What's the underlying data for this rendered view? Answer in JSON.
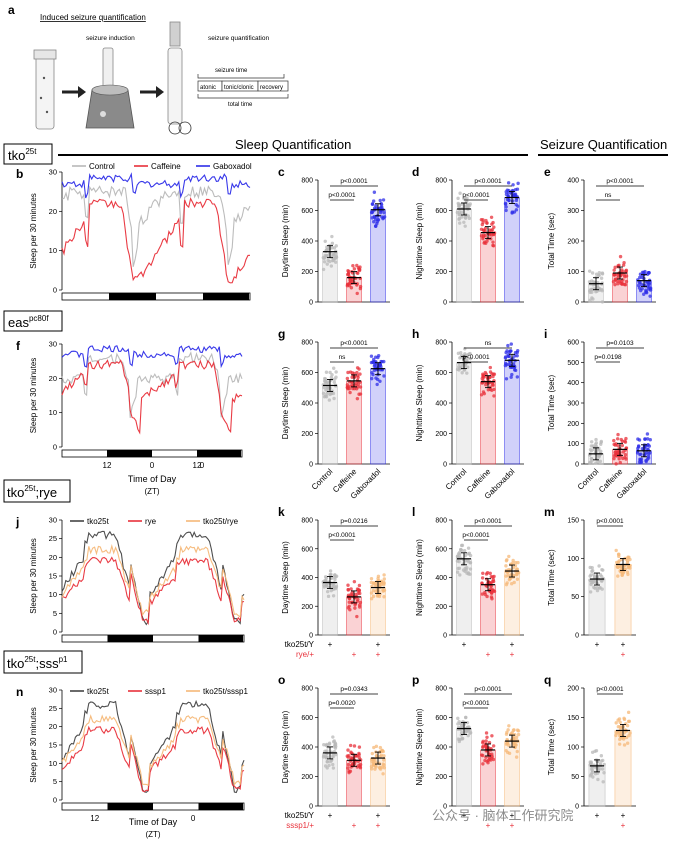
{
  "schematic": {
    "panel": "a",
    "title": "Induced seizure quantification",
    "label_induction": "seizure induction",
    "label_quant": "seizure quantification",
    "seizure_time": "seizure time",
    "phases": [
      "atonic",
      "tonic/clonic",
      "recovery"
    ],
    "total_time": "total time"
  },
  "headers": {
    "sleep": "Sleep Quantification",
    "seizure": "Seizure Quantification"
  },
  "genotypes": {
    "tko": {
      "base": "tko",
      "sup": "25t"
    },
    "eas": {
      "base": "eas",
      "sup": "pc80f"
    },
    "rye": {
      "base": "tko",
      "sup": "25t",
      "tail": ";rye"
    },
    "sss": {
      "base": "tko",
      "sup": "25t",
      "tail": ";sss",
      "sup2": "p1"
    }
  },
  "colors": {
    "control": "#b8b8b8",
    "caffeine": "#e8303a",
    "gaboxadol": "#2d2de8",
    "tko": "#444444",
    "rye": "#e8303a",
    "sss": "#e8303a",
    "double": "#f5b878"
  },
  "ylabels": {
    "sleep30": "Sleep per 30 minutes",
    "day": "Daytime Sleep (min)",
    "night": "Nighttime Sleep (min)",
    "total": "Total Time (sec)"
  },
  "xaxis": {
    "title": "Time of Day",
    "unit": "(ZT)"
  },
  "legend_bd": [
    "Control",
    "Caffeine",
    "Gaboxadol"
  ],
  "legend_j": [
    "tko25t",
    "rye",
    "tko25t/rye"
  ],
  "legend_n": [
    "tko25t",
    "sssp1",
    "tko25t/sssp1"
  ],
  "conditions": [
    "Control",
    "Caffeine",
    "Gaboxadol"
  ],
  "row3_labels": {
    "row1": "tko25t/Y",
    "row2": "rye/+"
  },
  "row4_labels": {
    "row1": "tko25t/Y",
    "row2": "sssp1/+"
  },
  "watermark": "公众号 · 脑体工作研究院",
  "chart_data": [
    {
      "panel": "c",
      "type": "bar",
      "ylabel": "Daytime Sleep (min)",
      "yticks": [
        0,
        200,
        400,
        600,
        800
      ],
      "ylim": [
        0,
        800
      ],
      "categories": [
        "Control",
        "Caffeine",
        "Gaboxadol"
      ],
      "values": [
        330,
        160,
        605
      ],
      "sig": [
        {
          "text": "p<0.0001"
        },
        {
          "text": "p<0.0001"
        }
      ]
    },
    {
      "panel": "d",
      "type": "bar",
      "ylabel": "Nighttime Sleep (min)",
      "yticks": [
        0,
        200,
        400,
        600,
        800
      ],
      "ylim": [
        0,
        800
      ],
      "categories": [
        "Control",
        "Caffeine",
        "Gaboxadol"
      ],
      "values": [
        610,
        455,
        685
      ],
      "sig": [
        {
          "text": "p<0.0001"
        },
        {
          "text": "p<0.0001"
        }
      ]
    },
    {
      "panel": "e",
      "type": "bar",
      "ylabel": "Total Time (sec)",
      "yticks": [
        0,
        100,
        200,
        300,
        400
      ],
      "ylim": [
        0,
        400
      ],
      "categories": [
        "Control",
        "Caffeine",
        "Gaboxadol"
      ],
      "values": [
        60,
        95,
        70
      ],
      "sig": [
        {
          "text": "ns"
        },
        {
          "text": "p<0.0001"
        }
      ]
    },
    {
      "panel": "g",
      "type": "bar",
      "ylabel": "Daytime Sleep (min)",
      "yticks": [
        0,
        200,
        400,
        600,
        800
      ],
      "ylim": [
        0,
        800
      ],
      "categories": [
        "Control",
        "Caffeine",
        "Gaboxadol"
      ],
      "values": [
        515,
        545,
        625
      ],
      "sig": [
        {
          "text": "ns"
        },
        {
          "text": "p<0.0001"
        }
      ]
    },
    {
      "panel": "h",
      "type": "bar",
      "ylabel": "Nighttime Sleep (min)",
      "yticks": [
        0,
        200,
        400,
        600,
        800
      ],
      "ylim": [
        0,
        800
      ],
      "categories": [
        "Control",
        "Caffeine",
        "Gaboxadol"
      ],
      "values": [
        665,
        540,
        680
      ],
      "sig": [
        {
          "text": "p<0.0001"
        },
        {
          "text": "ns"
        }
      ]
    },
    {
      "panel": "i",
      "type": "bar",
      "ylabel": "Total Time (sec)",
      "yticks": [
        0,
        100,
        200,
        300,
        400,
        500,
        600
      ],
      "ylim": [
        0,
        600
      ],
      "categories": [
        "Control",
        "Caffeine",
        "Gaboxadol"
      ],
      "values": [
        50,
        72,
        65
      ],
      "sig": [
        {
          "text": "p=0.0198"
        },
        {
          "text": "p=0.0103"
        }
      ]
    },
    {
      "panel": "k",
      "type": "bar",
      "ylabel": "Daytime Sleep (min)",
      "yticks": [
        0,
        200,
        400,
        600,
        800
      ],
      "ylim": [
        0,
        800
      ],
      "categories": [
        "tko25t/Y",
        "rye/+",
        "tko25t/Y;rye/+"
      ],
      "values": [
        365,
        265,
        330
      ],
      "sig": [
        {
          "text": "p<0.0001"
        },
        {
          "text": "p=0.0216"
        }
      ]
    },
    {
      "panel": "l",
      "type": "bar",
      "ylabel": "Nighttime Sleep (min)",
      "yticks": [
        0,
        200,
        400,
        600,
        800
      ],
      "ylim": [
        0,
        800
      ],
      "categories": [
        "tko25t/Y",
        "rye/+",
        "tko25t/Y;rye/+"
      ],
      "values": [
        530,
        350,
        445
      ],
      "sig": [
        {
          "text": "p<0.0001"
        },
        {
          "text": "p<0.0001"
        }
      ]
    },
    {
      "panel": "m",
      "type": "bar",
      "ylabel": "Total Time (sec)",
      "yticks": [
        0,
        50,
        100,
        150
      ],
      "ylim": [
        0,
        150
      ],
      "categories": [
        "tko25t/Y",
        "tko25t/Y;rye/+"
      ],
      "values": [
        73,
        92
      ],
      "sig": [
        {
          "text": "p<0.0001"
        }
      ]
    },
    {
      "panel": "o",
      "type": "bar",
      "ylabel": "Daytime Sleep (min)",
      "yticks": [
        0,
        200,
        400,
        600,
        800
      ],
      "ylim": [
        0,
        800
      ],
      "categories": [
        "tko25t/Y",
        "sssp1/+",
        "tko25t/Y;sssp1/+"
      ],
      "values": [
        360,
        310,
        325
      ],
      "sig": [
        {
          "text": "p=0.0020"
        },
        {
          "text": "p=0.0343"
        }
      ]
    },
    {
      "panel": "p",
      "type": "bar",
      "ylabel": "Nighttime Sleep (min)",
      "yticks": [
        0,
        200,
        400,
        600,
        800
      ],
      "ylim": [
        0,
        800
      ],
      "categories": [
        "tko25t/Y",
        "sssp1/+",
        "tko25t/Y;sssp1/+"
      ],
      "values": [
        525,
        380,
        440
      ],
      "sig": [
        {
          "text": "p<0.0001"
        },
        {
          "text": "p<0.0001"
        }
      ]
    },
    {
      "panel": "q",
      "type": "bar",
      "ylabel": "Total Time (sec)",
      "yticks": [
        0,
        50,
        100,
        150,
        200
      ],
      "ylim": [
        0,
        200
      ],
      "categories": [
        "tko25t/Y",
        "tko25t/Y;sssp1/+"
      ],
      "values": [
        68,
        128
      ],
      "sig": [
        {
          "text": "p<0.0001"
        }
      ]
    },
    {
      "panel": "b",
      "type": "line",
      "ylabel": "Sleep per 30 minutes",
      "yticks": [
        0,
        10,
        20,
        30
      ],
      "ylim": [
        0,
        30
      ],
      "series": [
        {
          "name": "Control"
        },
        {
          "name": "Caffeine"
        },
        {
          "name": "Gaboxadol"
        }
      ]
    },
    {
      "panel": "f",
      "type": "line",
      "ylabel": "Sleep per 30 minutes",
      "yticks": [
        0,
        10,
        20,
        30
      ],
      "ylim": [
        0,
        30
      ],
      "xticks": [
        "12",
        "0",
        "12",
        "0"
      ],
      "series": [
        {
          "name": "Control"
        },
        {
          "name": "Caffeine"
        },
        {
          "name": "Gaboxadol"
        }
      ]
    },
    {
      "panel": "j",
      "type": "line",
      "ylabel": "Sleep per 30 minutes",
      "yticks": [
        0,
        5,
        10,
        15,
        20,
        25,
        30
      ],
      "ylim": [
        0,
        30
      ],
      "series": [
        {
          "name": "tko25t"
        },
        {
          "name": "rye"
        },
        {
          "name": "tko25t/rye"
        }
      ]
    },
    {
      "panel": "n",
      "type": "line",
      "ylabel": "Sleep per 30 minutes",
      "yticks": [
        0,
        5,
        10,
        15,
        20,
        25,
        30
      ],
      "ylim": [
        0,
        30
      ],
      "xticks": [
        "12",
        "0"
      ],
      "series": [
        {
          "name": "tko25t"
        },
        {
          "name": "sssp1"
        },
        {
          "name": "tko25t/sssp1"
        }
      ]
    }
  ]
}
